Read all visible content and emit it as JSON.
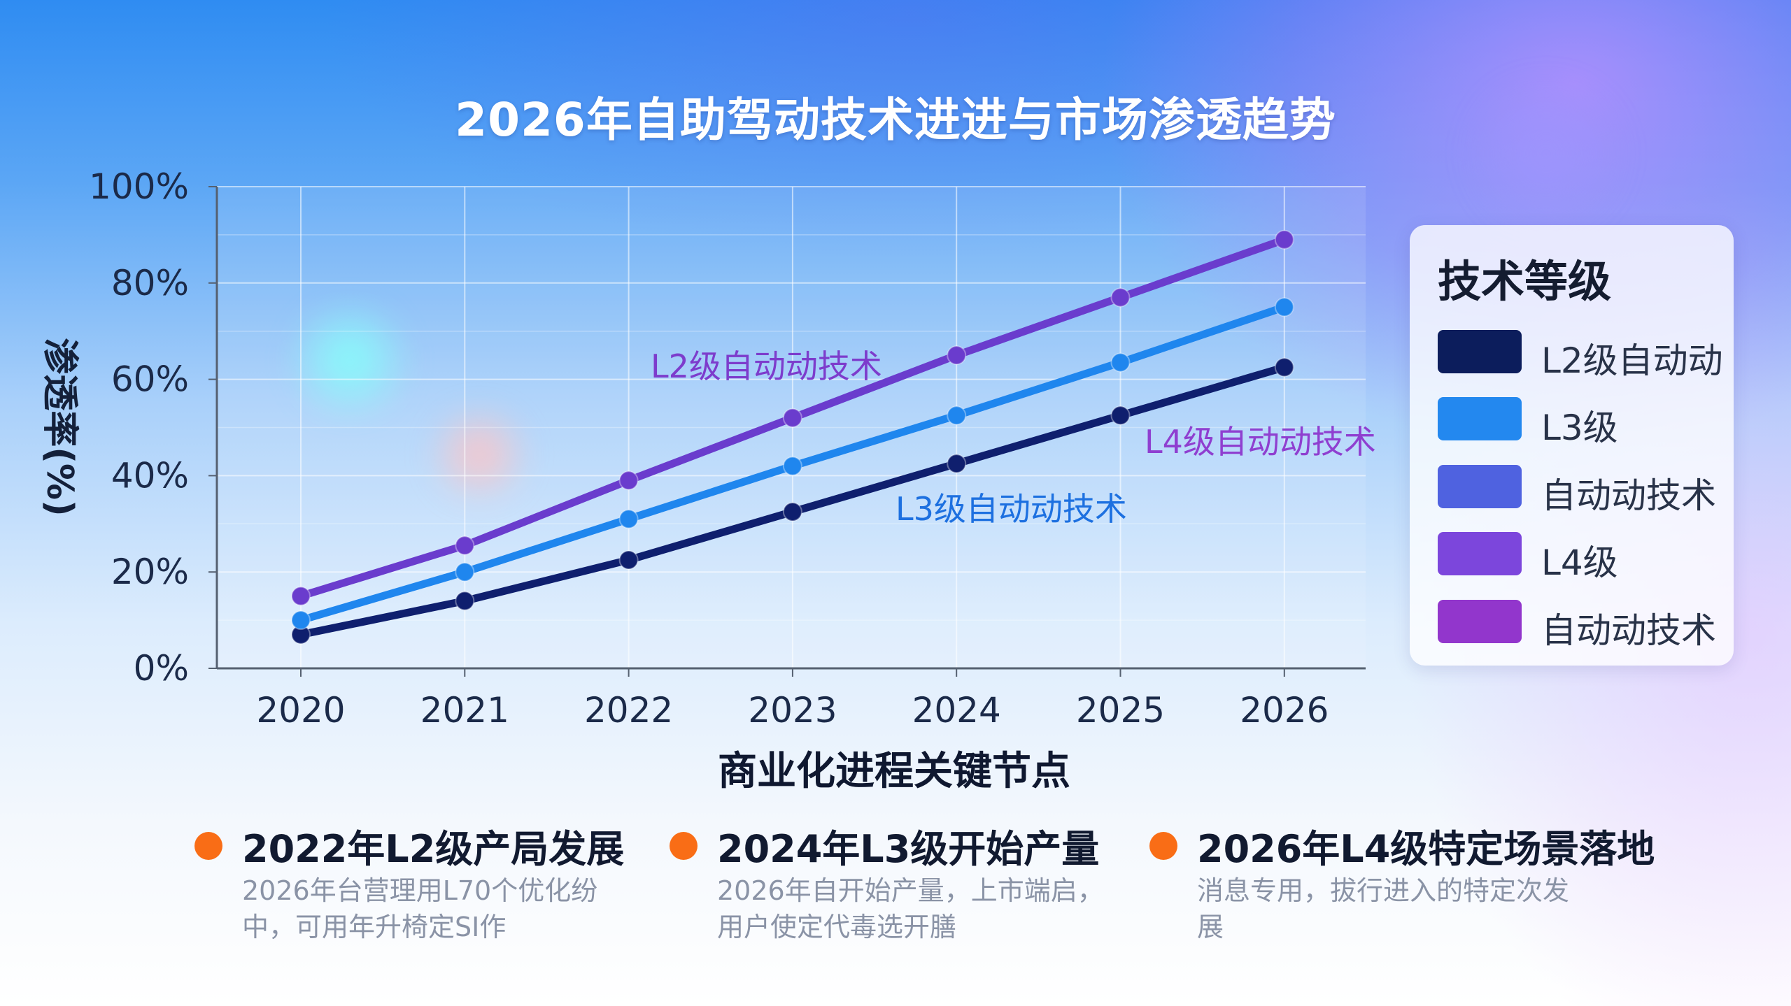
{
  "chart_data": {
    "type": "line",
    "title": "2026年自助驾动技术进进与市场渗透趋势",
    "xlabel": "商业化进程关键节点",
    "ylabel": "渗透率(%)",
    "ylim": [
      0,
      100
    ],
    "yticks": [
      "0%",
      "20%",
      "40%",
      "60%",
      "80%",
      "100%"
    ],
    "x": [
      "2020",
      "2021",
      "2022",
      "2023",
      "2024",
      "2025",
      "2026"
    ],
    "series": [
      {
        "name": "L2级自动动",
        "color": "#0f1f6e",
        "values": [
          7,
          14,
          22.5,
          32.5,
          42.5,
          52.5,
          62.5
        ]
      },
      {
        "name": "L3级",
        "color": "#1f86ee",
        "values": [
          10,
          20,
          31,
          42,
          52.5,
          63.5,
          75
        ]
      },
      {
        "name": "L4级",
        "color": "#6a3ccd",
        "values": [
          15,
          25.5,
          39,
          52,
          65,
          77,
          89
        ]
      }
    ],
    "annotations": [
      {
        "text": "L2级自动动技术",
        "color": "#7d3ccc"
      },
      {
        "text": "L3级自动动技术",
        "color": "#1d70e0"
      },
      {
        "text": "L4级自动动技术",
        "color": "#8f3fd0"
      }
    ]
  },
  "legend": {
    "title": "技术等级",
    "items": [
      {
        "label": "L2级自动动",
        "color": "#0c1d5c"
      },
      {
        "label": "L3级",
        "color": "#2388ef"
      },
      {
        "label": "自动动技术",
        "color": "#4f62e0"
      },
      {
        "label": "L4级",
        "color": "#7c46dc"
      },
      {
        "label": "自动动技术",
        "color": "#9236cc"
      }
    ]
  },
  "milestones": [
    {
      "title": "2022年L2级产局发展",
      "desc": "2026年台营理用L70个优化纷中，可用年升椅定SI作"
    },
    {
      "title": "2024年L3级开始产量",
      "desc": "2026年自开始产量，上市端启，用户使定代毒选开膳"
    },
    {
      "title": "2026年L4级特定场景落地",
      "desc": "消息专用，拔行进入的特定次发展"
    }
  ]
}
